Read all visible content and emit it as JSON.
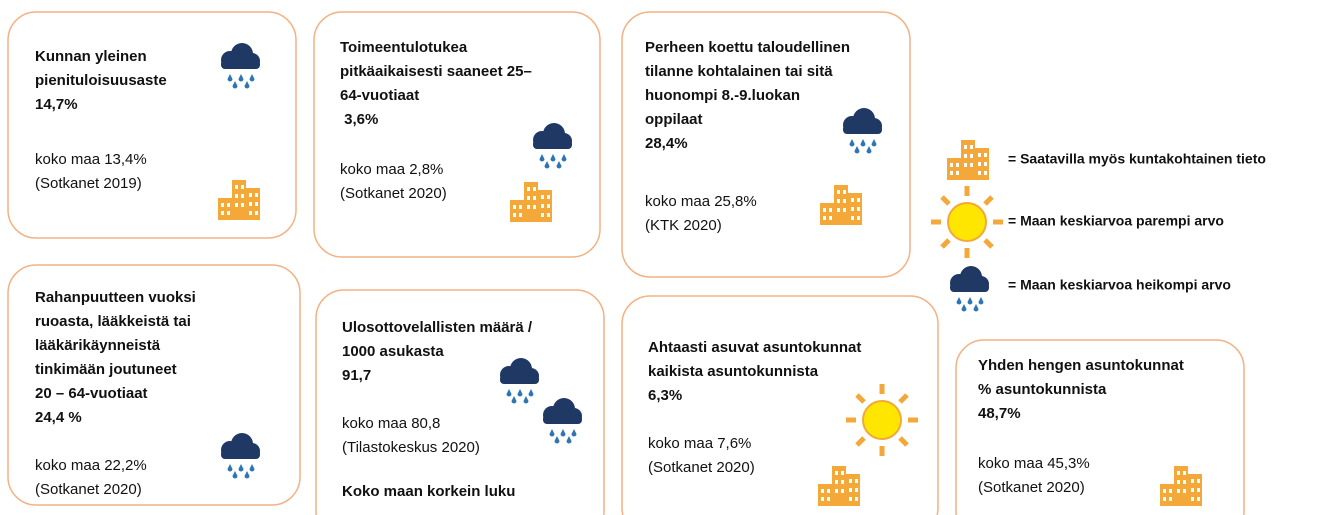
{
  "cards": [
    {
      "title_lines": [
        "Kunnan yleinen",
        "pienituloisuusaste"
      ],
      "value": "14,7%",
      "comparison": "koko maa 13,4%",
      "source": "(Sotkanet 2019)"
    },
    {
      "title_lines": [
        "Toimeentulotukea",
        "pitkäaikaisesti saaneet 25–",
        "64-vuotiaat"
      ],
      "value": " 3,6%",
      "comparison": "koko maa 2,8%",
      "source": "(Sotkanet 2020)"
    },
    {
      "title_lines": [
        "Perheen koettu  taloudellinen",
        "tilanne kohtalainen tai sitä",
        "huonompi 8.-9.luokan",
        "oppilaat"
      ],
      "value": "28,4%",
      "comparison": "koko maa 25,8%",
      "source": "(KTK 2020)"
    },
    {
      "title_lines": [
        "Rahanpuutteen vuoksi",
        "ruoasta, lääkkeistä tai",
        "lääkärikäynneistä",
        "tinkimään joutuneet",
        "20 – 64-vuotiaat"
      ],
      "value": "24,4 %",
      "comparison": "koko maa 22,2%",
      "source": "(Sotkanet 2020)"
    },
    {
      "title_lines": [
        "Ulosottovelallisten määrä /",
        "1000 asukasta"
      ],
      "value": "91,7",
      "comparison": "koko maa 80,8",
      "source": "(Tilastokeskus 2020)",
      "note": "Koko maan korkein luku"
    },
    {
      "title_lines": [
        "Ahtaasti asuvat asuntokunnat",
        "kaikista asuntokunnista"
      ],
      "value": "6,3%",
      "comparison": "koko maa 7,6%",
      "source": "(Sotkanet 2020)"
    },
    {
      "title_lines": [
        "Yhden hengen asuntokunnat",
        "% asuntokunnista"
      ],
      "value": "48,7%",
      "comparison": "koko maa 45,3%",
      "source": "(Sotkanet 2020)"
    }
  ],
  "legend": [
    {
      "label": "= Saatavilla myös kuntakohtainen tieto"
    },
    {
      "label": "= Maan keskiarvoa parempi arvo"
    },
    {
      "label": "= Maan keskiarvoa heikompi arvo"
    }
  ]
}
